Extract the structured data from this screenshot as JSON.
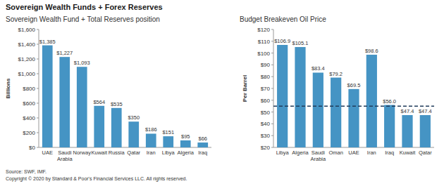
{
  "page_title": "Sovereign Wealth Funds + Forex Reserves",
  "source": "Source: SWF, IMF.",
  "copyright": "Copyright © 2020 by Standard & Poor's Financial Services LLC. All rights reserved.",
  "chart_data": [
    {
      "type": "bar",
      "title": "Sovereign Wealth Fund + Total Reserves position",
      "y_label": "Billions",
      "categories": [
        "UAE",
        "Saudi Arabia",
        "Norway",
        "Kuwait",
        "Russia",
        "Qatar",
        "Iran",
        "Libya",
        "Algeria",
        "Iraq"
      ],
      "values": [
        1385,
        1227,
        1093,
        564,
        535,
        350,
        186,
        151,
        95,
        66
      ],
      "value_labels": [
        "$1,385",
        "$1,227",
        "$1,093",
        "$564",
        "$535",
        "$350",
        "$186",
        "$151",
        "$95",
        "$66"
      ],
      "color": "#4594c4",
      "ylim": [
        0,
        1600
      ],
      "yticks": [
        {
          "value": 0,
          "label": "$0"
        },
        {
          "value": 200,
          "label": "$200"
        },
        {
          "value": 400,
          "label": "$400"
        },
        {
          "value": 600,
          "label": "$600"
        },
        {
          "value": 800,
          "label": "$800"
        },
        {
          "value": 1000,
          "label": "$1,000"
        },
        {
          "value": 1200,
          "label": "$1,200"
        },
        {
          "value": 1400,
          "label": "$1,400"
        },
        {
          "value": 1600,
          "label": "$1,600"
        }
      ],
      "grid": false,
      "data_labels": true
    },
    {
      "type": "bar",
      "title": "Budget Breakeven Oil Price",
      "y_label": "Per Barrel",
      "categories": [
        "Libya",
        "Algeria",
        "Saudi Arabia",
        "Oman",
        "UAE",
        "Iran",
        "Iraq",
        "Kuwait",
        "Qatar"
      ],
      "values": [
        106.9,
        105.1,
        83.4,
        79.2,
        69.5,
        98.6,
        56.0,
        47.4,
        47.4
      ],
      "value_labels": [
        "$106.9",
        "$105.1",
        "$83.4",
        "$79.2",
        "$69.5",
        "$98.6",
        "$56.0",
        "$47.4",
        "$47.4"
      ],
      "color": "#4594c4",
      "ylim": [
        20,
        120
      ],
      "yticks": [
        {
          "value": 20,
          "label": "$20"
        },
        {
          "value": 30,
          "label": "$30"
        },
        {
          "value": 40,
          "label": "$40"
        },
        {
          "value": 50,
          "label": "$50"
        },
        {
          "value": 60,
          "label": "$60"
        },
        {
          "value": 70,
          "label": "$70"
        },
        {
          "value": 80,
          "label": "$80"
        },
        {
          "value": 90,
          "label": "$90"
        },
        {
          "value": 100,
          "label": "$100"
        },
        {
          "value": 110,
          "label": "$110"
        },
        {
          "value": 120,
          "label": "$120"
        }
      ],
      "grid": false,
      "data_labels": true,
      "reference_lines": [
        {
          "value": 55,
          "line_style": "dashed"
        }
      ]
    }
  ]
}
